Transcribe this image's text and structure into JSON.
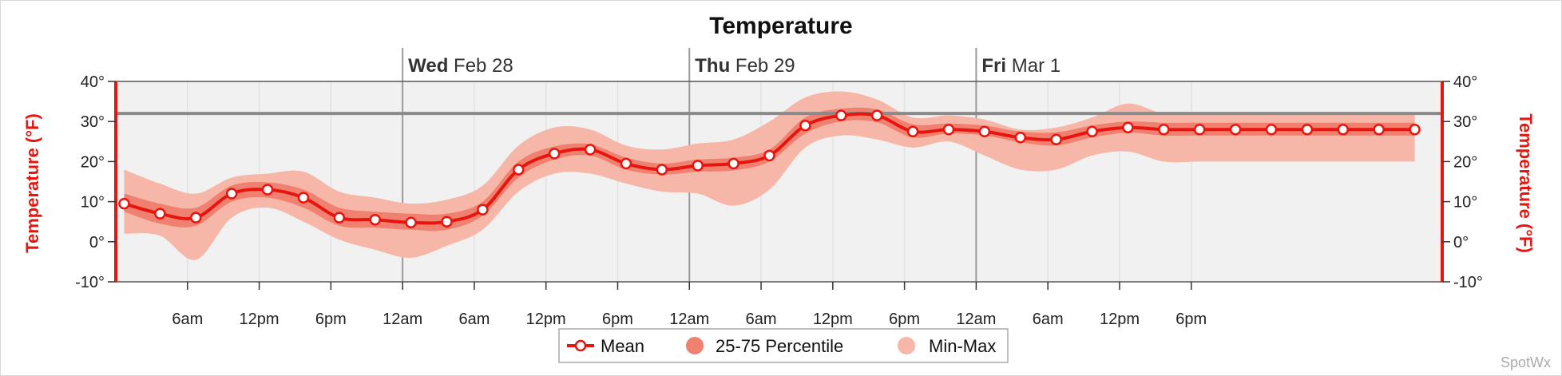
{
  "chart_data": {
    "type": "line",
    "title": "Temperature",
    "ylabel": "Temperature (°F)",
    "ylabel_right": "Temperature (°F)",
    "ylim": [
      -10,
      40
    ],
    "yticks": [
      40,
      30,
      20,
      10,
      0,
      -10
    ],
    "ytick_labels": [
      "40°",
      "30°",
      "20°",
      "10°",
      "0°",
      "-10°"
    ],
    "xlim_hours": [
      0,
      111
    ],
    "x_unit": "hours from start of plot",
    "xtick_hours": [
      6,
      12,
      18,
      24,
      30,
      36,
      42,
      48,
      54,
      60,
      66,
      72,
      78,
      84,
      90
    ],
    "xtick_labels": [
      "6am",
      "12pm",
      "6pm",
      "12am",
      "6am",
      "12pm",
      "6pm",
      "12am",
      "6am",
      "12pm",
      "6pm",
      "12am",
      "6am",
      "12pm",
      "6pm"
    ],
    "day_markers": [
      {
        "hour": 24,
        "bold": "Wed",
        "rest": " Feb 28"
      },
      {
        "hour": 48,
        "bold": "Thu",
        "rest": " Feb 29"
      },
      {
        "hour": 72,
        "bold": "Fri",
        "rest": " Mar 1"
      }
    ],
    "reference_line": 32,
    "legend": [
      "Mean",
      "25-75 Percentile",
      "Min-Max"
    ],
    "legend_position": "bottom-center",
    "colors": {
      "mean": "#e8150f",
      "p2575": "#f08070",
      "minmax": "#f7b7a8",
      "reference": "#8a8a8a",
      "axis": "#e8150f"
    },
    "series": [
      {
        "name": "Mean",
        "x": [
          0.7,
          3.7,
          6.7,
          9.7,
          12.7,
          15.7,
          18.7,
          21.7,
          24.7,
          27.7,
          30.7,
          33.7,
          36.7,
          39.7,
          42.7,
          45.7,
          48.7,
          51.7,
          54.7,
          57.7,
          60.7,
          63.7,
          66.7,
          69.7,
          72.7,
          75.7,
          78.7,
          81.7,
          84.7,
          87.7,
          90.7,
          93.7,
          96.7,
          99.7,
          102.7,
          105.7,
          108.7
        ],
        "y": [
          9.5,
          7,
          6,
          12,
          13,
          11,
          6,
          5.5,
          4.8,
          5,
          8,
          18,
          22,
          23,
          19.5,
          18,
          19,
          19.5,
          21.5,
          29,
          31.5,
          31.5,
          27.5,
          28,
          27.5,
          26,
          25.5,
          27.5,
          28.5,
          28,
          28,
          28,
          28,
          28,
          28,
          28,
          28
        ]
      },
      {
        "name": "25-75 Percentile",
        "low": [
          7.5,
          4.5,
          4.0,
          10.0,
          11.0,
          8.5,
          4.0,
          3.5,
          3.0,
          3.0,
          6.5,
          16.0,
          20.5,
          21.5,
          18.0,
          16.8,
          17.5,
          17.8,
          20.0,
          27.0,
          30.0,
          29.8,
          26.0,
          27.0,
          26.5,
          24.8,
          24.0,
          26.0,
          27.2,
          26.5,
          26.5,
          26.5,
          26.5,
          26.5,
          26.5,
          26.5,
          26.5
        ],
        "high": [
          12.0,
          9.5,
          8.5,
          14.0,
          14.8,
          13.0,
          8.5,
          7.5,
          7.0,
          7.0,
          10.0,
          20.0,
          23.8,
          24.3,
          21.0,
          19.5,
          20.5,
          21.0,
          23.0,
          31.0,
          33.2,
          33.0,
          29.3,
          29.5,
          29.0,
          27.5,
          27.3,
          29.0,
          30.0,
          29.7,
          29.7,
          29.7,
          29.7,
          29.7,
          29.7,
          29.7,
          29.7
        ]
      },
      {
        "name": "Min-Max",
        "low": [
          2.0,
          1.5,
          -4.5,
          6.0,
          8.5,
          5.0,
          0.5,
          -2.0,
          -4.0,
          -1.0,
          3.0,
          12.5,
          17.0,
          17.0,
          14.5,
          12.5,
          12.0,
          9.0,
          13.0,
          23.5,
          26.5,
          25.5,
          23.5,
          25.0,
          21.5,
          18.0,
          18.0,
          21.5,
          22.5,
          20.0,
          20.0,
          20.0,
          20.0,
          20.0,
          20.0,
          20.0,
          20.0
        ],
        "high": [
          18.0,
          14.5,
          12.0,
          16.0,
          17.0,
          17.5,
          12.5,
          11.0,
          9.5,
          10.5,
          14.0,
          24.0,
          28.5,
          28.0,
          24.0,
          23.0,
          24.5,
          25.5,
          30.0,
          36.0,
          37.5,
          35.5,
          31.0,
          31.5,
          30.5,
          28.0,
          28.5,
          31.0,
          34.5,
          32.0,
          32.0,
          32.0,
          32.0,
          32.0,
          32.0,
          32.0,
          32.0
        ]
      }
    ]
  },
  "watermark": "SpotWx"
}
